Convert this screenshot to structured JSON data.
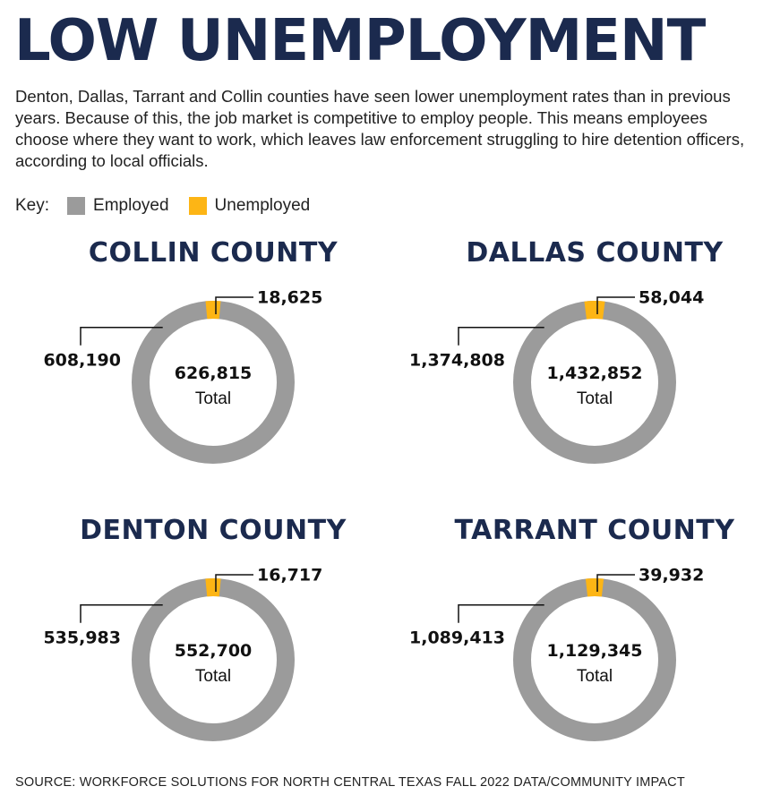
{
  "title": "LOW UNEMPLOYMENT",
  "intro": "Denton, Dallas, Tarrant and Collin counties have seen lower unemployment rates than in previous years. Because of this, the job market is competitive to employ people. This means employees choose where they want to work, which leaves law enforcement struggling to hire detention officers, according to local officials.",
  "key": {
    "label": "Key:",
    "employed": "Employed",
    "unemployed": "Unemployed"
  },
  "colors": {
    "title": "#1b2a4e",
    "employed": "#9b9b9b",
    "unemployed": "#fdb515"
  },
  "total_word": "Total",
  "source": "SOURCE: WORKFORCE SOLUTIONS FOR NORTH CENTRAL TEXAS FALL 2022 DATA/COMMUNITY IMPACT",
  "chart_data": [
    {
      "type": "pie",
      "title": "COLLIN COUNTY",
      "categories": [
        "Employed",
        "Unemployed"
      ],
      "values": [
        608190,
        18625
      ],
      "labels": [
        "608,190",
        "18,625"
      ],
      "total": 626815,
      "total_label": "626,815"
    },
    {
      "type": "pie",
      "title": "DALLAS COUNTY",
      "categories": [
        "Employed",
        "Unemployed"
      ],
      "values": [
        1374808,
        58044
      ],
      "labels": [
        "1,374,808",
        "58,044"
      ],
      "total": 1432852,
      "total_label": "1,432,852"
    },
    {
      "type": "pie",
      "title": "DENTON COUNTY",
      "categories": [
        "Employed",
        "Unemployed"
      ],
      "values": [
        535983,
        16717
      ],
      "labels": [
        "535,983",
        "16,717"
      ],
      "total": 552700,
      "total_label": "552,700"
    },
    {
      "type": "pie",
      "title": "TARRANT COUNTY",
      "categories": [
        "Employed",
        "Unemployed"
      ],
      "values": [
        1089413,
        39932
      ],
      "labels": [
        "1,089,413",
        "39,932"
      ],
      "total": 1129345,
      "total_label": "1,129,345"
    }
  ]
}
